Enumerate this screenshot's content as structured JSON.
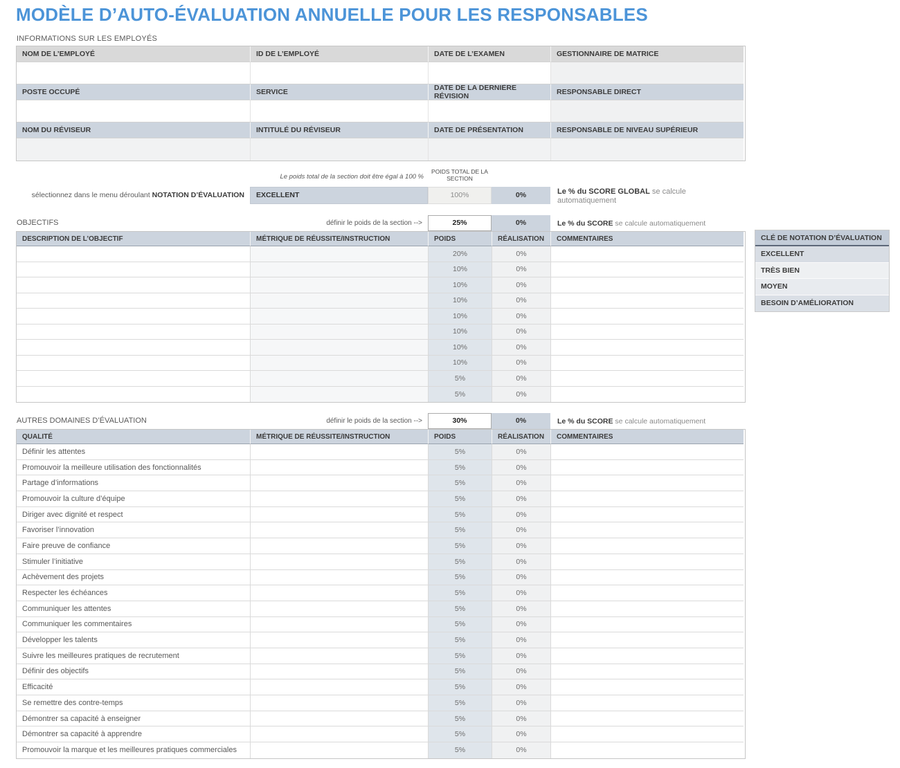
{
  "page_title": "MODÈLE D’AUTO-ÉVALUATION ANNUELLE POUR LES RESPONSABLES",
  "colors": {
    "title_blue": "#4c94d8",
    "header_gray": "#d9d9d9",
    "header_blue": "#ccd4de",
    "weight_cell_blue": "#dfe5eb",
    "achievement_cell_gray": "#f0f1f2",
    "key_header": "#c3ccd8"
  },
  "employee_info": {
    "section_label": "INFORMATIONS SUR LES EMPLOYÉS",
    "rows": [
      {
        "headers": [
          "NOM DE L’EMPLOYÉ",
          "ID DE L’EMPLOYÉ",
          "DATE DE L’EXAMEN",
          "GESTIONNAIRE DE MATRICE"
        ],
        "values": [
          "",
          "",
          "",
          ""
        ]
      },
      {
        "headers": [
          "POSTE OCCUPÉ",
          "SERVICE",
          "DATE DE LA DERNIÈRE RÉVISION",
          "RESPONSABLE DIRECT"
        ],
        "values": [
          "",
          "",
          "",
          ""
        ]
      },
      {
        "headers": [
          "NOM DU RÉVISEUR",
          "INTITULÉ DU RÉVISEUR",
          "DATE DE PRÉSENTATION",
          "RESPONSABLE DE NIVEAU SUPÉRIEUR"
        ],
        "values": [
          "",
          "",
          "",
          ""
        ]
      }
    ]
  },
  "overall": {
    "weight_note": "Le poids total de la section doit être égal à 100 %",
    "weight_header": "POIDS TOTAL DE LA SECTION",
    "select_label_regular": "sélectionnez dans le menu déroulant ",
    "select_label_bold": "NOTATION D’ÉVALUATION",
    "rating_value": "EXCELLENT",
    "section_weight_total": "100%",
    "overall_score": "0%",
    "score_note_bold": "Le % du SCORE GLOBAL",
    "score_note_regular": " se calcule automatiquement"
  },
  "objectives": {
    "section_label": "OBJECTIFS",
    "weight_arrow_label": "définir le poids de la section -->",
    "section_weight": "25%",
    "section_score": "0%",
    "score_note_bold": "Le % du SCORE",
    "score_note_regular": " se calcule automatiquement",
    "columns": [
      "DESCRIPTION DE L’OBJECTIF",
      "MÉTRIQUE DE RÉUSSITE/INSTRUCTION",
      "POIDS",
      "RÉALISATION",
      "COMMENTAIRES"
    ],
    "rows": [
      {
        "description": "",
        "metric": "",
        "weight": "20%",
        "achievement": "0%",
        "comments": ""
      },
      {
        "description": "",
        "metric": "",
        "weight": "10%",
        "achievement": "0%",
        "comments": ""
      },
      {
        "description": "",
        "metric": "",
        "weight": "10%",
        "achievement": "0%",
        "comments": ""
      },
      {
        "description": "",
        "metric": "",
        "weight": "10%",
        "achievement": "0%",
        "comments": ""
      },
      {
        "description": "",
        "metric": "",
        "weight": "10%",
        "achievement": "0%",
        "comments": ""
      },
      {
        "description": "",
        "metric": "",
        "weight": "10%",
        "achievement": "0%",
        "comments": ""
      },
      {
        "description": "",
        "metric": "",
        "weight": "10%",
        "achievement": "0%",
        "comments": ""
      },
      {
        "description": "",
        "metric": "",
        "weight": "10%",
        "achievement": "0%",
        "comments": ""
      },
      {
        "description": "",
        "metric": "",
        "weight": "5%",
        "achievement": "0%",
        "comments": ""
      },
      {
        "description": "",
        "metric": "",
        "weight": "5%",
        "achievement": "0%",
        "comments": ""
      }
    ]
  },
  "other_areas": {
    "section_label": "AUTRES DOMAINES D’ÉVALUATION",
    "weight_arrow_label": "définir le poids de la section -->",
    "section_weight": "30%",
    "section_score": "0%",
    "score_note_bold": "Le % du SCORE",
    "score_note_regular": " se calcule automatiquement",
    "columns": [
      "QUALITÉ",
      "MÉTRIQUE DE RÉUSSITE/INSTRUCTION",
      "POIDS",
      "RÉALISATION",
      "COMMENTAIRES"
    ],
    "rows": [
      {
        "quality": "Définir les attentes",
        "metric": "",
        "weight": "5%",
        "achievement": "0%",
        "comments": ""
      },
      {
        "quality": "Promouvoir la meilleure utilisation des fonctionnalités",
        "metric": "",
        "weight": "5%",
        "achievement": "0%",
        "comments": ""
      },
      {
        "quality": "Partage d’informations",
        "metric": "",
        "weight": "5%",
        "achievement": "0%",
        "comments": ""
      },
      {
        "quality": "Promouvoir la culture d’équipe",
        "metric": "",
        "weight": "5%",
        "achievement": "0%",
        "comments": ""
      },
      {
        "quality": "Diriger avec dignité et respect",
        "metric": "",
        "weight": "5%",
        "achievement": "0%",
        "comments": ""
      },
      {
        "quality": "Favoriser l’innovation",
        "metric": "",
        "weight": "5%",
        "achievement": "0%",
        "comments": ""
      },
      {
        "quality": "Faire preuve de confiance",
        "metric": "",
        "weight": "5%",
        "achievement": "0%",
        "comments": ""
      },
      {
        "quality": "Stimuler l’initiative",
        "metric": "",
        "weight": "5%",
        "achievement": "0%",
        "comments": ""
      },
      {
        "quality": "Achèvement des projets",
        "metric": "",
        "weight": "5%",
        "achievement": "0%",
        "comments": ""
      },
      {
        "quality": "Respecter les échéances",
        "metric": "",
        "weight": "5%",
        "achievement": "0%",
        "comments": ""
      },
      {
        "quality": "Communiquer les attentes",
        "metric": "",
        "weight": "5%",
        "achievement": "0%",
        "comments": ""
      },
      {
        "quality": "Communiquer les commentaires",
        "metric": "",
        "weight": "5%",
        "achievement": "0%",
        "comments": ""
      },
      {
        "quality": "Développer les talents",
        "metric": "",
        "weight": "5%",
        "achievement": "0%",
        "comments": ""
      },
      {
        "quality": "Suivre les meilleures pratiques de recrutement",
        "metric": "",
        "weight": "5%",
        "achievement": "0%",
        "comments": ""
      },
      {
        "quality": "Définir des objectifs",
        "metric": "",
        "weight": "5%",
        "achievement": "0%",
        "comments": ""
      },
      {
        "quality": "Efficacité",
        "metric": "",
        "weight": "5%",
        "achievement": "0%",
        "comments": ""
      },
      {
        "quality": "Se remettre des contre-temps",
        "metric": "",
        "weight": "5%",
        "achievement": "0%",
        "comments": ""
      },
      {
        "quality": "Démontrer sa capacité à enseigner",
        "metric": "",
        "weight": "5%",
        "achievement": "0%",
        "comments": ""
      },
      {
        "quality": "Démontrer sa capacité à apprendre",
        "metric": "",
        "weight": "5%",
        "achievement": "0%",
        "comments": ""
      },
      {
        "quality": "Promouvoir la marque et les meilleures pratiques commerciales",
        "metric": "",
        "weight": "5%",
        "achievement": "0%",
        "comments": ""
      }
    ]
  },
  "rating_key": {
    "header": "CLÉ DE NOTATION D’ÉVALUATION",
    "items": [
      "EXCELLENT",
      "TRÈS BIEN",
      "MOYEN",
      "BESOIN D’AMÉLIORATION"
    ]
  }
}
